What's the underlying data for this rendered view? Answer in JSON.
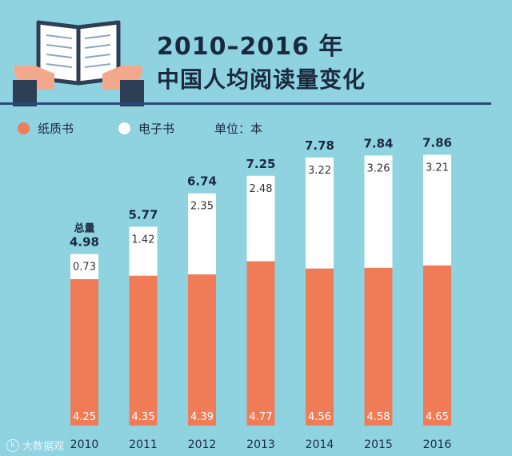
{
  "title": {
    "line1": "2010–2016 年",
    "line2": "中国人均阅读量变化"
  },
  "legend": {
    "paper": "纸质书",
    "ebook": "电子书",
    "unit": "单位：本"
  },
  "total_label": "总量",
  "colors": {
    "background": "#8fd3e1",
    "paper": "#f07b57",
    "ebook": "#ffffff",
    "title": "#1a2a3e",
    "divider": "#2b4a7a"
  },
  "icon": "open-book-in-hands-icon",
  "watermark": "大数据观",
  "chart_data": {
    "type": "bar",
    "stacked": true,
    "categories": [
      "2010",
      "2011",
      "2012",
      "2013",
      "2014",
      "2015",
      "2016"
    ],
    "series": [
      {
        "name": "纸质书",
        "values": [
          4.25,
          4.35,
          4.39,
          4.77,
          4.56,
          4.58,
          4.65
        ]
      },
      {
        "name": "电子书",
        "values": [
          0.73,
          1.42,
          2.35,
          2.48,
          3.22,
          3.26,
          3.21
        ]
      }
    ],
    "totals": [
      4.98,
      5.77,
      6.74,
      7.25,
      7.78,
      7.84,
      7.86
    ],
    "ylim": [
      0,
      8.8
    ],
    "grid": false,
    "legend_position": "top-left"
  }
}
